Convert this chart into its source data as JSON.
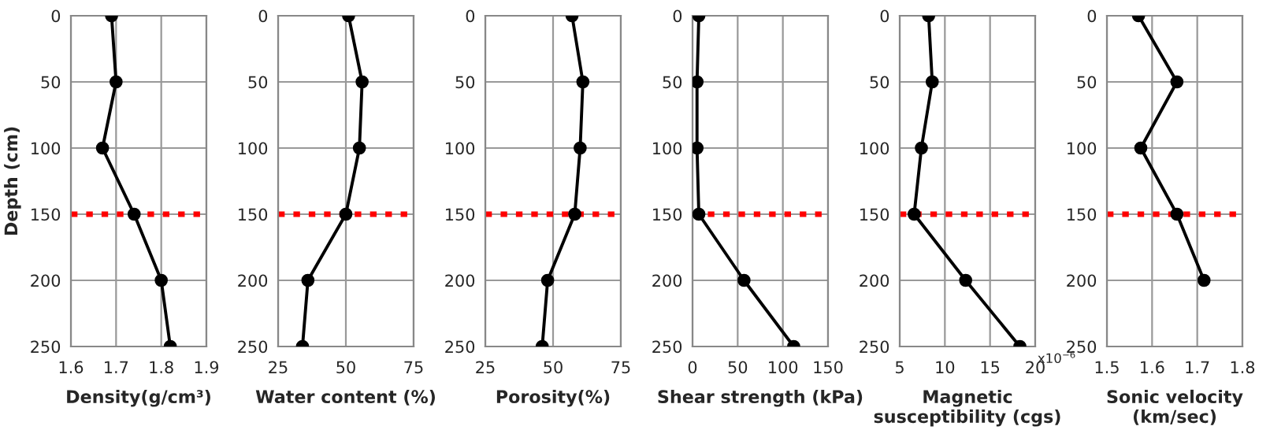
{
  "chart_data": [
    {
      "type": "line",
      "xlabel": "Density(g/cm³)",
      "ylabel": "Depth (cm)",
      "xlim": [
        1.6,
        1.9
      ],
      "xticks": [
        1.6,
        1.7,
        1.8,
        1.9
      ],
      "ylim": [
        250,
        0
      ],
      "yticks": [
        0,
        50,
        100,
        150,
        200,
        250
      ],
      "grid": true,
      "marker": "circle",
      "line_style": "solid",
      "series": [
        {
          "color": "#000000",
          "x": [
            1.69,
            1.7,
            1.67,
            1.74,
            1.8,
            1.82
          ],
          "values": [
            0,
            50,
            100,
            150,
            200,
            250
          ]
        }
      ],
      "ref_lines": [
        {
          "axis": "y",
          "value": 150,
          "color": "#ff0000",
          "line_style": "dotted"
        }
      ]
    },
    {
      "type": "line",
      "xlabel": "Water content (%)",
      "xlim": [
        25,
        75
      ],
      "xticks": [
        25,
        50,
        75
      ],
      "ylim": [
        250,
        0
      ],
      "yticks": [
        0,
        50,
        100,
        150,
        200,
        250
      ],
      "grid": true,
      "marker": "circle",
      "line_style": "solid",
      "series": [
        {
          "color": "#000000",
          "x": [
            51,
            56,
            55,
            50,
            36,
            34
          ],
          "values": [
            0,
            50,
            100,
            150,
            200,
            250
          ]
        }
      ],
      "ref_lines": [
        {
          "axis": "y",
          "value": 150,
          "color": "#ff0000",
          "line_style": "dotted"
        }
      ]
    },
    {
      "type": "line",
      "xlabel": "Porosity(%)",
      "xlim": [
        25,
        75
      ],
      "xticks": [
        25,
        50,
        75
      ],
      "ylim": [
        250,
        0
      ],
      "yticks": [
        0,
        50,
        100,
        150,
        200,
        250
      ],
      "grid": true,
      "marker": "circle",
      "line_style": "solid",
      "series": [
        {
          "color": "#000000",
          "x": [
            57,
            61,
            60,
            58,
            48,
            46
          ],
          "values": [
            0,
            50,
            100,
            150,
            200,
            250
          ]
        }
      ],
      "ref_lines": [
        {
          "axis": "y",
          "value": 150,
          "color": "#ff0000",
          "line_style": "dotted"
        }
      ]
    },
    {
      "type": "line",
      "xlabel": "Shear strength (kPa)",
      "xlim": [
        0,
        150
      ],
      "xticks": [
        0,
        50,
        100,
        150
      ],
      "ylim": [
        250,
        0
      ],
      "yticks": [
        0,
        50,
        100,
        150,
        200,
        250
      ],
      "grid": true,
      "marker": "circle",
      "line_style": "solid",
      "series": [
        {
          "color": "#000000",
          "x": [
            7,
            5,
            5,
            7,
            57,
            112
          ],
          "values": [
            0,
            50,
            100,
            150,
            200,
            250
          ]
        }
      ],
      "ref_lines": [
        {
          "axis": "y",
          "value": 150,
          "color": "#ff0000",
          "line_style": "dotted"
        }
      ]
    },
    {
      "type": "line",
      "xlabel": "Magnetic\nsusceptibility (cgs)",
      "xlim": [
        5,
        20
      ],
      "xticks": [
        5,
        10,
        15,
        20
      ],
      "ylim": [
        250,
        0
      ],
      "yticks": [
        0,
        50,
        100,
        150,
        200,
        250
      ],
      "grid": true,
      "marker": "circle",
      "line_style": "solid",
      "annotations": [
        "x10$^{−6}$"
      ],
      "series": [
        {
          "color": "#000000",
          "x": [
            8.2,
            8.6,
            7.4,
            6.6,
            12.3,
            18.3
          ],
          "values": [
            0,
            50,
            100,
            150,
            200,
            250
          ]
        }
      ],
      "ref_lines": [
        {
          "axis": "y",
          "value": 150,
          "color": "#ff0000",
          "line_style": "dotted"
        }
      ]
    },
    {
      "type": "line",
      "xlabel": "Sonic velocity\n(km/sec)",
      "xlim": [
        1.5,
        1.8
      ],
      "xticks": [
        1.5,
        1.6,
        1.7,
        1.8
      ],
      "ylim": [
        250,
        0
      ],
      "yticks": [
        0,
        50,
        100,
        150,
        200,
        250
      ],
      "grid": true,
      "marker": "circle",
      "line_style": "solid",
      "series": [
        {
          "color": "#000000",
          "x": [
            1.57,
            1.655,
            1.575,
            1.655,
            1.715
          ],
          "values": [
            0,
            50,
            100,
            150,
            200
          ]
        }
      ],
      "ref_lines": [
        {
          "axis": "y",
          "value": 150,
          "color": "#ff0000",
          "line_style": "dotted"
        }
      ]
    }
  ]
}
